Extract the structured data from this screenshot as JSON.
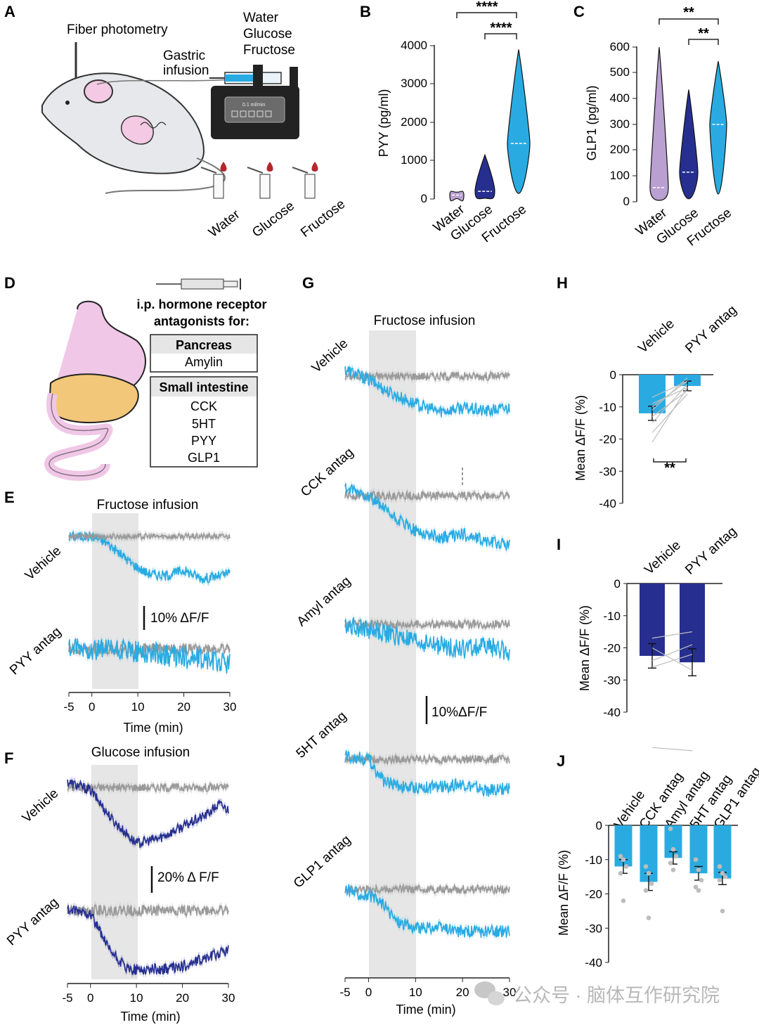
{
  "panels": {
    "A": {
      "letter": "A",
      "fiber": "Fiber photometry",
      "gastric": [
        "Gastric",
        "infusion"
      ],
      "solutions": [
        "Water",
        "Glucose",
        "Fructose"
      ],
      "pump": "0.1 ml/min",
      "tubes": [
        "Water",
        "Glucose",
        "Fructose"
      ]
    },
    "B": {
      "letter": "B"
    },
    "C": {
      "letter": "C"
    },
    "D": {
      "letter": "D",
      "heading": [
        "i.p. hormone receptor",
        "antagonists for:"
      ],
      "pancreas_head": "Pancreas",
      "pancreas_items": [
        "Amylin"
      ],
      "intestine_head": "Small intestine",
      "intestine_items": [
        "CCK",
        "5HT",
        "PYY",
        "GLP1"
      ]
    },
    "E": {
      "letter": "E",
      "title": "Fructose infusion",
      "conditions": [
        "Vehicle",
        "PYY antag"
      ],
      "scalebar": "10% ΔF/F",
      "xlabel": "Time (min)",
      "xticks": [
        "-5",
        "0",
        "10",
        "20",
        "30"
      ]
    },
    "F": {
      "letter": "F",
      "title": "Glucose infusion",
      "conditions": [
        "Vehicle",
        "PYY antag"
      ],
      "scalebar": "20% Δ F/F",
      "xlabel": "Time (min)",
      "xticks": [
        "-5",
        "0",
        "10",
        "20",
        "30"
      ]
    },
    "G": {
      "letter": "G",
      "title": "Fructose infusion",
      "conditions": [
        "Vehicle",
        "CCK antag",
        "Amyl antag",
        "5HT antag",
        "GLP1 antag"
      ],
      "scalebar": "10%ΔF/F",
      "xlabel": "Time (min)",
      "xticks": [
        "-5",
        "0",
        "10",
        "20",
        "30"
      ]
    },
    "H": {
      "letter": "H",
      "significance": "**"
    },
    "I": {
      "letter": "I"
    },
    "J": {
      "letter": "J"
    }
  },
  "colors": {
    "light_blue": "#29abe2",
    "dark_blue": "#262f8f",
    "purple": "#b9a0d1",
    "gray": "#9a9a9a",
    "shade": "#e6e6e6"
  },
  "watermark": "公众号 · 脑体互作研究院",
  "chart_data": [
    {
      "id": "B",
      "type": "violin",
      "categories": [
        "Water",
        "Glucose",
        "Fructose"
      ],
      "ylabel": "PYY (pg/ml)",
      "ylim": [
        0,
        4000
      ],
      "yticks": [
        "0",
        "1000",
        "2000",
        "3000",
        "4000"
      ],
      "medians": [
        100,
        200,
        1450
      ],
      "maxima": [
        180,
        1150,
        3900
      ],
      "colors": [
        "#b9a0d1",
        "#262f8f",
        "#29abe2"
      ],
      "significance": [
        {
          "pair": [
            "Water",
            "Fructose"
          ],
          "label": "****"
        },
        {
          "pair": [
            "Glucose",
            "Fructose"
          ],
          "label": "****"
        }
      ]
    },
    {
      "id": "C",
      "type": "violin",
      "categories": [
        "Water",
        "Glucose",
        "Fructose"
      ],
      "ylabel": "GLP1 (pg/ml)",
      "ylim": [
        0,
        600
      ],
      "yticks": [
        "0",
        "100",
        "200",
        "300",
        "400",
        "500",
        "600"
      ],
      "medians": [
        55,
        115,
        300
      ],
      "maxima": [
        600,
        435,
        545
      ],
      "colors": [
        "#b9a0d1",
        "#262f8f",
        "#29abe2"
      ],
      "significance": [
        {
          "pair": [
            "Water",
            "Fructose"
          ],
          "label": "**"
        },
        {
          "pair": [
            "Glucose",
            "Fructose"
          ],
          "label": "**"
        }
      ]
    },
    {
      "id": "H",
      "type": "bar",
      "categories": [
        "Vehicle",
        "PYY antag"
      ],
      "values": [
        -12,
        -3.5
      ],
      "errors": [
        2.2,
        1.5
      ],
      "ylabel": "Mean ΔF/F (%)",
      "ylim": [
        -40,
        0
      ],
      "yticks": [
        "0",
        "-10",
        "-20",
        "-30",
        "-40"
      ],
      "color": "#29abe2",
      "pairs": [
        [
          -7,
          -2
        ],
        [
          -9,
          -4
        ],
        [
          -11,
          -1
        ],
        [
          -13,
          -5
        ],
        [
          -15,
          -3
        ],
        [
          -18,
          -6
        ],
        [
          -21,
          -4
        ],
        [
          -10,
          -2
        ]
      ]
    },
    {
      "id": "I",
      "type": "bar",
      "categories": [
        "Vehicle",
        "PYY antag"
      ],
      "values": [
        -22.5,
        -24.5
      ],
      "errors": [
        3.8,
        4.2
      ],
      "ylabel": "Mean ΔF/F (%)",
      "ylim": [
        -40,
        0
      ],
      "yticks": [
        "0",
        "-10",
        "-20",
        "-30",
        "-40"
      ],
      "color": "#262f8f",
      "pairs": [
        [
          -17,
          -15
        ],
        [
          -20,
          -27
        ],
        [
          -24,
          -19
        ],
        [
          -26,
          -22
        ],
        [
          -51,
          -52
        ]
      ]
    },
    {
      "id": "J",
      "type": "bar",
      "categories": [
        "Vehicle",
        "CCK antag",
        "Amyl antag",
        "5HT antag",
        "GLP1 antag"
      ],
      "values": [
        -12,
        -16.5,
        -9.5,
        -14,
        -15.5
      ],
      "errors": [
        2,
        2.5,
        1.8,
        2,
        1.8
      ],
      "ylabel": "Mean ΔF/F (%)",
      "ylim": [
        -40,
        0
      ],
      "yticks": [
        "0",
        "-10",
        "-20",
        "-30",
        "-40"
      ],
      "color": "#29abe2",
      "points": [
        [
          -9,
          -10,
          -12,
          -14,
          -22
        ],
        [
          -12,
          -14,
          -17,
          -19,
          -27
        ],
        [
          -1,
          -7,
          -9,
          -11,
          -13
        ],
        [
          -10,
          -13,
          -16,
          -18,
          -19
        ],
        [
          -12,
          -14,
          -15,
          -16,
          -25
        ]
      ]
    },
    {
      "id": "E",
      "type": "line",
      "x_range": [
        -5,
        30
      ],
      "shade": [
        0,
        10
      ],
      "traces": [
        {
          "row": 0,
          "color": "#29abe2",
          "pts": [
            [
              -5,
              0
            ],
            [
              0,
              0
            ],
            [
              3,
              -2
            ],
            [
              6,
              -6
            ],
            [
              9,
              -10
            ],
            [
              12,
              -13
            ],
            [
              16,
              -14
            ],
            [
              20,
              -12
            ],
            [
              24,
              -15
            ],
            [
              28,
              -14
            ],
            [
              30,
              -13
            ]
          ],
          "noise": 1.8
        },
        {
          "row": 0,
          "color": "#9a9a9a",
          "pts": [
            [
              -5,
              0
            ],
            [
              30,
              0
            ]
          ],
          "noise": 1
        },
        {
          "row": 1,
          "color": "#9a9a9a",
          "pts": [
            [
              -5,
              0
            ],
            [
              30,
              0
            ]
          ],
          "noise": 2
        },
        {
          "row": 1,
          "color": "#29abe2",
          "pts": [
            [
              -5,
              0
            ],
            [
              10,
              -1
            ],
            [
              20,
              -3
            ],
            [
              30,
              -5
            ]
          ],
          "noise": 4
        }
      ]
    },
    {
      "id": "F",
      "type": "line",
      "x_range": [
        -5,
        30
      ],
      "shade": [
        0,
        10
      ],
      "traces": [
        {
          "row": 0,
          "color": "#9a9a9a",
          "pts": [
            [
              -5,
              0
            ],
            [
              30,
              0
            ]
          ],
          "noise": 1.5
        },
        {
          "row": 0,
          "color": "#262f8f",
          "pts": [
            [
              -5,
              2
            ],
            [
              0,
              -1
            ],
            [
              5,
              -12
            ],
            [
              10,
              -20
            ],
            [
              15,
              -18
            ],
            [
              20,
              -14
            ],
            [
              25,
              -10
            ],
            [
              28,
              -6
            ],
            [
              30,
              -8
            ]
          ],
          "noise": 1.8
        },
        {
          "row": 1,
          "color": "#9a9a9a",
          "pts": [
            [
              -5,
              0
            ],
            [
              30,
              0
            ]
          ],
          "noise": 2
        },
        {
          "row": 1,
          "color": "#262f8f",
          "pts": [
            [
              -5,
              0
            ],
            [
              0,
              -1
            ],
            [
              4,
              -14
            ],
            [
              8,
              -21
            ],
            [
              15,
              -21
            ],
            [
              20,
              -20
            ],
            [
              25,
              -17
            ],
            [
              30,
              -14
            ]
          ],
          "noise": 2
        }
      ]
    },
    {
      "id": "G",
      "type": "line",
      "x_range": [
        -5,
        30
      ],
      "shade": [
        0,
        10
      ],
      "traces": [
        {
          "row": 0,
          "color": "#9a9a9a",
          "pts": [
            [
              -5,
              0
            ],
            [
              30,
              0
            ]
          ],
          "noise": 1.2
        },
        {
          "row": 0,
          "color": "#29abe2",
          "pts": [
            [
              -5,
              2
            ],
            [
              0,
              -1
            ],
            [
              5,
              -5
            ],
            [
              10,
              -8
            ],
            [
              15,
              -10
            ],
            [
              20,
              -9
            ],
            [
              25,
              -10
            ],
            [
              30,
              -9
            ]
          ],
          "noise": 1.8
        },
        {
          "row": 1,
          "color": "#9a9a9a",
          "pts": [
            [
              -5,
              0
            ],
            [
              30,
              0
            ]
          ],
          "noise": 1.2
        },
        {
          "row": 1,
          "color": "#29abe2",
          "pts": [
            [
              -5,
              2
            ],
            [
              0,
              0
            ],
            [
              5,
              -6
            ],
            [
              10,
              -10
            ],
            [
              15,
              -12
            ],
            [
              20,
              -11
            ],
            [
              25,
              -13
            ],
            [
              30,
              -14
            ]
          ],
          "noise": 1.8
        },
        {
          "row": 2,
          "color": "#9a9a9a",
          "pts": [
            [
              -5,
              0
            ],
            [
              30,
              0
            ]
          ],
          "noise": 1.2
        },
        {
          "row": 2,
          "color": "#29abe2",
          "pts": [
            [
              -5,
              0
            ],
            [
              5,
              -3
            ],
            [
              10,
              -5
            ],
            [
              15,
              -6
            ],
            [
              20,
              -7
            ],
            [
              25,
              -6
            ],
            [
              30,
              -8
            ]
          ],
          "noise": 2.8
        },
        {
          "row": 3,
          "color": "#9a9a9a",
          "pts": [
            [
              -5,
              0
            ],
            [
              30,
              0
            ]
          ],
          "noise": 1.2
        },
        {
          "row": 3,
          "color": "#29abe2",
          "pts": [
            [
              -5,
              1
            ],
            [
              0,
              0
            ],
            [
              3,
              -6
            ],
            [
              8,
              -8
            ],
            [
              15,
              -8
            ],
            [
              20,
              -7
            ],
            [
              25,
              -9
            ],
            [
              30,
              -8
            ]
          ],
          "noise": 1.8
        },
        {
          "row": 4,
          "color": "#9a9a9a",
          "pts": [
            [
              -5,
              0
            ],
            [
              30,
              0
            ]
          ],
          "noise": 1.2
        },
        {
          "row": 4,
          "color": "#29abe2",
          "pts": [
            [
              -5,
              0
            ],
            [
              0,
              -2
            ],
            [
              3,
              -4
            ],
            [
              6,
              -9
            ],
            [
              10,
              -11
            ],
            [
              15,
              -11
            ],
            [
              20,
              -12
            ],
            [
              30,
              -12
            ]
          ],
          "noise": 1.8
        }
      ]
    }
  ]
}
